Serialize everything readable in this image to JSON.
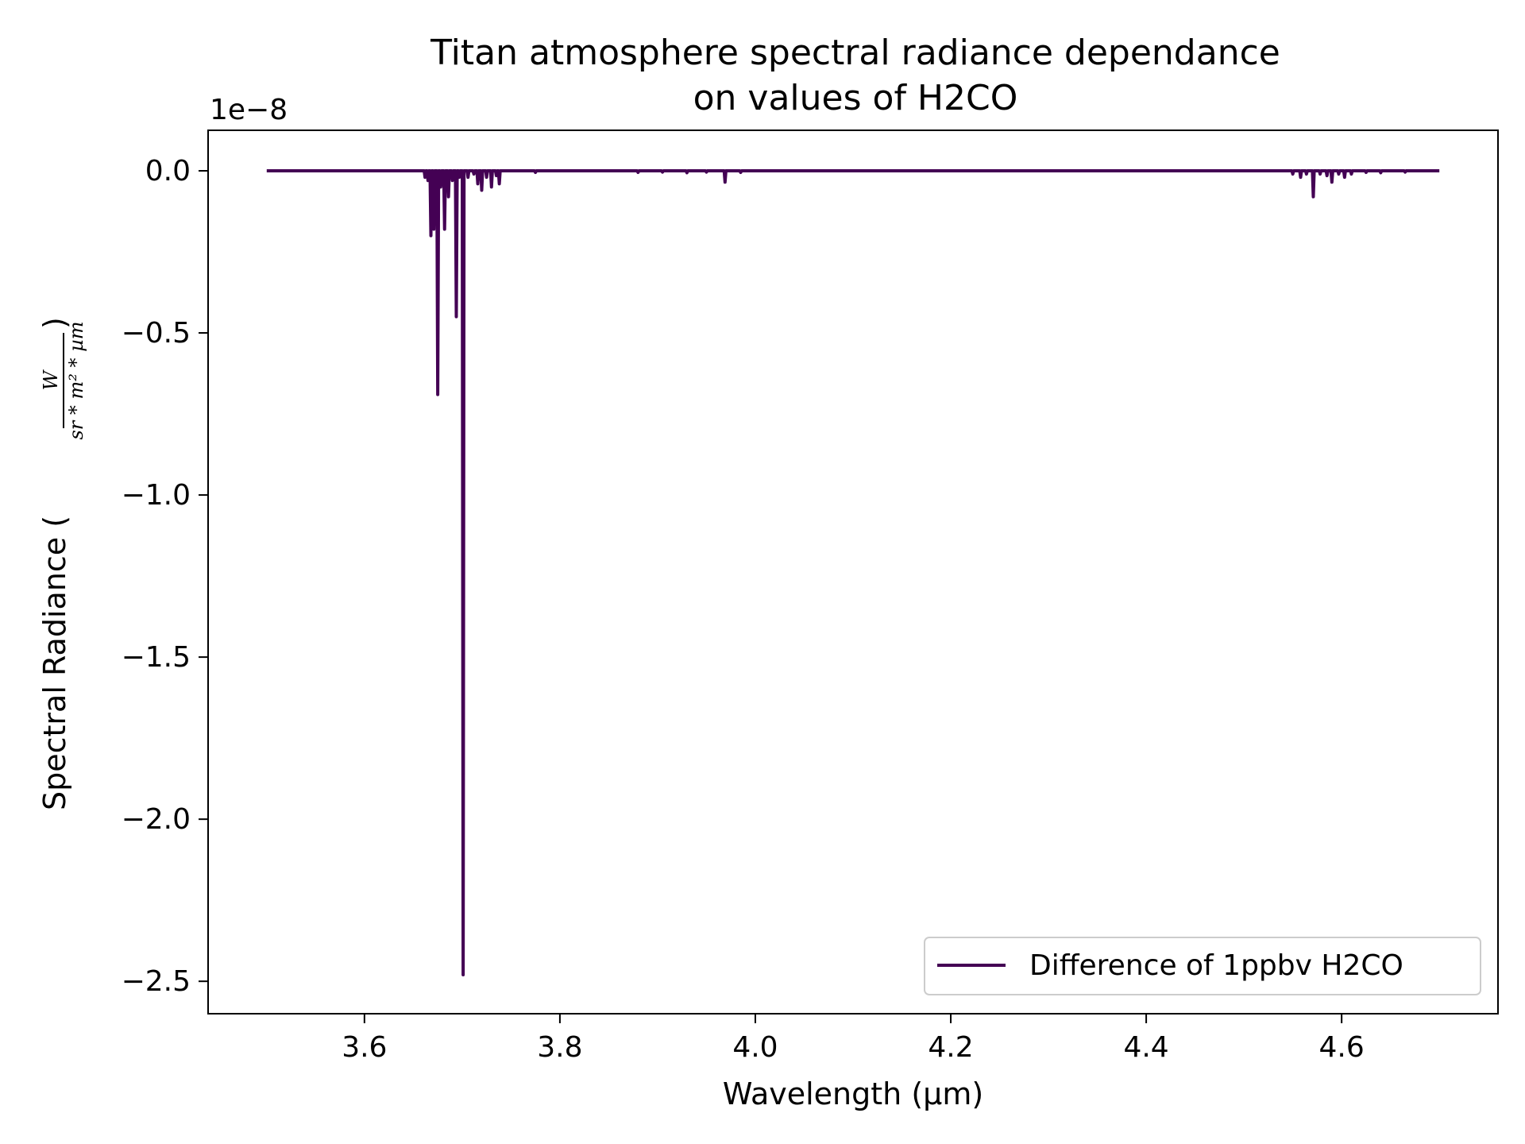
{
  "chart_data": {
    "type": "line",
    "title": "Titan atmosphere spectral radiance dependance\non values of H2CO",
    "title_lines": [
      "Titan atmosphere spectral radiance dependance",
      "on values of H2CO"
    ],
    "xlabel": "Wavelength (µm)",
    "ylabel": "Spectral Radiance (",
    "ylabel_unit_numerator": "W",
    "ylabel_unit_denominator": "sr * m² * µm",
    "ylabel_close": ")",
    "y_offset_label": "1e−8",
    "xlim": [
      3.44,
      4.76
    ],
    "ylim": [
      -2.6,
      0.125
    ],
    "xticks": [
      3.6,
      3.8,
      4.0,
      4.2,
      4.4,
      4.6
    ],
    "xtick_labels": [
      "3.6",
      "3.8",
      "4.0",
      "4.2",
      "4.4",
      "4.6"
    ],
    "yticks": [
      0.0,
      -0.5,
      -1.0,
      -1.5,
      -2.0,
      -2.5
    ],
    "ytick_labels": [
      "0.0",
      "−0.5",
      "−1.0",
      "−1.5",
      "−2.0",
      "−2.5"
    ],
    "grid": false,
    "legend_position": "lower-right",
    "series": [
      {
        "name": "Difference of 1ppbv H2CO",
        "color": "#440154",
        "x_range": [
          3.5,
          4.7
        ],
        "baseline": 0.0,
        "dips": [
          {
            "x": 3.662,
            "y": -0.02
          },
          {
            "x": 3.665,
            "y": -0.03
          },
          {
            "x": 3.668,
            "y": -0.2
          },
          {
            "x": 3.671,
            "y": -0.18
          },
          {
            "x": 3.675,
            "y": -0.69
          },
          {
            "x": 3.678,
            "y": -0.05
          },
          {
            "x": 3.682,
            "y": -0.18
          },
          {
            "x": 3.686,
            "y": -0.08
          },
          {
            "x": 3.69,
            "y": -0.03
          },
          {
            "x": 3.694,
            "y": -0.45
          },
          {
            "x": 3.697,
            "y": -0.02
          },
          {
            "x": 3.701,
            "y": -2.48
          },
          {
            "x": 3.706,
            "y": -0.02
          },
          {
            "x": 3.712,
            "y": -0.01
          },
          {
            "x": 3.716,
            "y": -0.04
          },
          {
            "x": 3.72,
            "y": -0.06
          },
          {
            "x": 3.725,
            "y": -0.02
          },
          {
            "x": 3.73,
            "y": -0.05
          },
          {
            "x": 3.735,
            "y": -0.015
          },
          {
            "x": 3.738,
            "y": -0.04
          },
          {
            "x": 3.775,
            "y": -0.005
          },
          {
            "x": 3.88,
            "y": -0.005
          },
          {
            "x": 3.905,
            "y": -0.004
          },
          {
            "x": 3.93,
            "y": -0.006
          },
          {
            "x": 3.95,
            "y": -0.004
          },
          {
            "x": 3.969,
            "y": -0.035
          },
          {
            "x": 3.985,
            "y": -0.005
          },
          {
            "x": 4.55,
            "y": -0.01
          },
          {
            "x": 4.558,
            "y": -0.02
          },
          {
            "x": 4.564,
            "y": -0.01
          },
          {
            "x": 4.571,
            "y": -0.08
          },
          {
            "x": 4.578,
            "y": -0.01
          },
          {
            "x": 4.585,
            "y": -0.015
          },
          {
            "x": 4.59,
            "y": -0.035
          },
          {
            "x": 4.597,
            "y": -0.01
          },
          {
            "x": 4.603,
            "y": -0.02
          },
          {
            "x": 4.61,
            "y": -0.01
          },
          {
            "x": 4.625,
            "y": -0.005
          },
          {
            "x": 4.64,
            "y": -0.006
          },
          {
            "x": 4.665,
            "y": -0.004
          }
        ]
      }
    ]
  }
}
